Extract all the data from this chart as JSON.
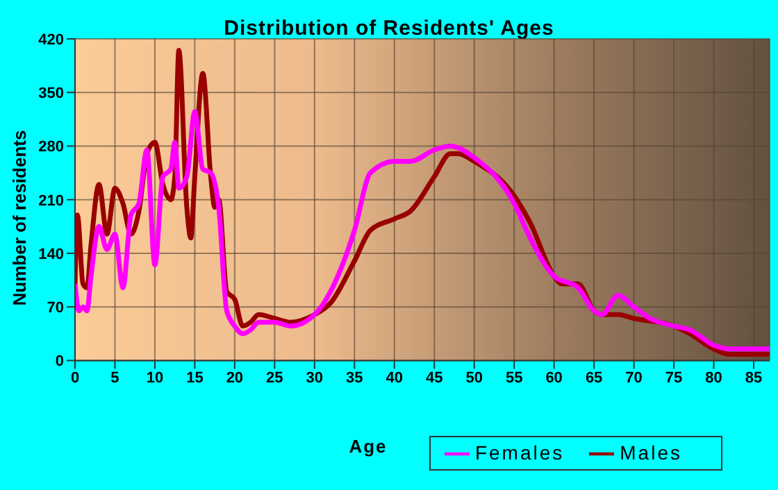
{
  "chart_data": {
    "type": "line",
    "title": "Distribution of Residents' Ages",
    "xlabel": "Age",
    "ylabel": "Number of residents",
    "xlim": [
      0,
      87
    ],
    "xticks": [
      0,
      5,
      10,
      15,
      20,
      25,
      30,
      35,
      40,
      45,
      50,
      55,
      60,
      65,
      70,
      75,
      80,
      85
    ],
    "ylim": [
      0,
      420
    ],
    "yticks": [
      0,
      70,
      140,
      210,
      280,
      350,
      420
    ],
    "grid": true,
    "legend": "bottom right",
    "marker": "none",
    "line_style": "solid",
    "series": [
      {
        "name": "Males",
        "color": "#990000",
        "x": [
          0,
          0.3,
          1,
          1.5,
          2,
          3,
          4,
          5,
          6,
          7,
          8,
          9,
          10,
          11,
          12,
          12.5,
          13,
          14,
          14.5,
          15,
          16,
          17,
          17.5,
          18,
          19,
          20,
          21,
          22,
          23,
          25,
          27,
          30,
          32,
          35,
          37,
          40,
          42,
          45,
          47,
          48,
          50,
          55,
          57,
          60,
          61,
          63,
          65,
          66,
          68,
          70,
          75,
          77,
          80,
          82,
          87
        ],
        "values": [
          100,
          190,
          100,
          95,
          150,
          230,
          165,
          225,
          205,
          165,
          195,
          270,
          285,
          230,
          210,
          240,
          405,
          200,
          160,
          240,
          375,
          240,
          200,
          210,
          90,
          80,
          45,
          50,
          60,
          55,
          50,
          60,
          75,
          130,
          170,
          185,
          195,
          240,
          270,
          270,
          260,
          215,
          180,
          110,
          100,
          100,
          65,
          60,
          60,
          55,
          45,
          35,
          15,
          8,
          8
        ]
      },
      {
        "name": "Females",
        "color": "#ff00ff",
        "x": [
          0,
          0.5,
          1,
          1.5,
          2,
          3,
          4,
          5,
          6,
          7,
          8,
          9,
          10,
          11,
          12,
          12.5,
          13,
          14,
          15,
          16,
          17,
          18,
          19,
          20,
          21,
          22,
          23,
          25,
          27,
          30,
          32,
          35,
          37,
          40,
          42,
          45,
          47,
          50,
          55,
          57,
          60,
          63,
          65,
          66,
          68,
          70,
          72,
          75,
          77,
          80,
          82,
          87
        ],
        "values": [
          100,
          65,
          70,
          65,
          110,
          175,
          145,
          165,
          95,
          190,
          205,
          275,
          125,
          240,
          250,
          285,
          225,
          240,
          325,
          250,
          245,
          200,
          65,
          45,
          35,
          40,
          50,
          50,
          45,
          60,
          90,
          170,
          245,
          260,
          260,
          275,
          280,
          265,
          205,
          160,
          110,
          95,
          65,
          60,
          85,
          70,
          55,
          45,
          40,
          20,
          15,
          15
        ]
      }
    ]
  }
}
